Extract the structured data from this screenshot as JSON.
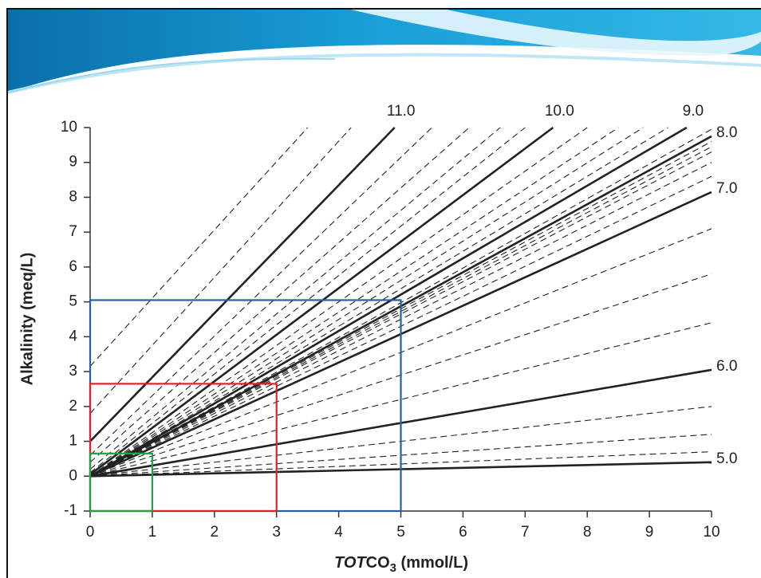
{
  "chart_data": {
    "type": "line",
    "xlabel_parts": [
      "TOT",
      "CO",
      "3",
      " (mmol/L)"
    ],
    "ylabel": "Alkalinity (meq/L)",
    "xlim": [
      0,
      10
    ],
    "xticks": [
      0,
      1,
      2,
      3,
      4,
      5,
      6,
      7,
      8,
      9,
      10
    ],
    "ylim": [
      -1,
      10
    ],
    "yticks": [
      -1,
      0,
      1,
      2,
      3,
      4,
      5,
      6,
      7,
      8,
      9,
      10
    ],
    "line_color": "#222222",
    "series": [
      {
        "name": "11.0",
        "style": "solid",
        "x": [
          0,
          4.9
        ],
        "values": [
          1.0,
          10
        ]
      },
      {
        "name": "10.0",
        "style": "solid",
        "x": [
          0,
          7.45
        ],
        "values": [
          0.05,
          10
        ]
      },
      {
        "name": "9.0",
        "style": "solid",
        "x": [
          0,
          9.6
        ],
        "values": [
          0,
          10
        ]
      },
      {
        "name": "8.0",
        "style": "solid",
        "x": [
          0,
          10
        ],
        "values": [
          0,
          9.75
        ]
      },
      {
        "name": "7.0",
        "style": "solid",
        "x": [
          0,
          10
        ],
        "values": [
          0,
          8.15
        ]
      },
      {
        "name": "6.0",
        "style": "solid",
        "x": [
          0,
          10
        ],
        "values": [
          0,
          3.05
        ]
      },
      {
        "name": "5.0",
        "style": "solid",
        "x": [
          0,
          10
        ],
        "values": [
          0,
          0.4
        ]
      },
      {
        "style": "dashed",
        "x": [
          0,
          3.5
        ],
        "values": [
          3.15,
          10
        ]
      },
      {
        "style": "dashed",
        "x": [
          0,
          4.2
        ],
        "values": [
          1.8,
          10
        ]
      },
      {
        "style": "dashed",
        "x": [
          0,
          5.5
        ],
        "values": [
          0.6,
          10
        ]
      },
      {
        "style": "dashed",
        "x": [
          0,
          6.1
        ],
        "values": [
          0.4,
          10
        ]
      },
      {
        "style": "dashed",
        "x": [
          0,
          6.6
        ],
        "values": [
          0.2,
          10
        ]
      },
      {
        "style": "dashed",
        "x": [
          0,
          7.0
        ],
        "values": [
          0.1,
          10
        ]
      },
      {
        "style": "dashed",
        "x": [
          0,
          8.0
        ],
        "values": [
          0,
          10
        ]
      },
      {
        "style": "dashed",
        "x": [
          0,
          8.5
        ],
        "values": [
          0,
          10
        ]
      },
      {
        "style": "dashed",
        "x": [
          0,
          8.9
        ],
        "values": [
          0,
          10
        ]
      },
      {
        "style": "dashed",
        "x": [
          0,
          9.3
        ],
        "values": [
          0,
          10
        ]
      },
      {
        "style": "dashed",
        "x": [
          0,
          10
        ],
        "values": [
          0,
          9.95
        ]
      },
      {
        "style": "dashed",
        "x": [
          0,
          10
        ],
        "values": [
          0,
          9.6
        ]
      },
      {
        "style": "dashed",
        "x": [
          0,
          10
        ],
        "values": [
          0,
          9.45
        ]
      },
      {
        "style": "dashed",
        "x": [
          0,
          10
        ],
        "values": [
          0,
          9.3
        ]
      },
      {
        "style": "dashed",
        "x": [
          0,
          10
        ],
        "values": [
          0,
          9.0
        ]
      },
      {
        "style": "dashed",
        "x": [
          0,
          10
        ],
        "values": [
          0,
          8.6
        ]
      },
      {
        "style": "dashed",
        "x": [
          0,
          10
        ],
        "values": [
          0,
          7.1
        ]
      },
      {
        "style": "dashed",
        "x": [
          0,
          10
        ],
        "values": [
          0,
          5.8
        ]
      },
      {
        "style": "dashed",
        "x": [
          0,
          10
        ],
        "values": [
          0,
          4.4
        ]
      },
      {
        "style": "dashed",
        "x": [
          0,
          10
        ],
        "values": [
          0,
          2.0
        ]
      },
      {
        "style": "dashed",
        "x": [
          0,
          10
        ],
        "values": [
          0,
          1.2
        ]
      },
      {
        "style": "dashed",
        "x": [
          0,
          10
        ],
        "values": [
          0,
          0.7
        ]
      }
    ],
    "rectangles": [
      {
        "x": [
          0,
          5
        ],
        "y": [
          -1,
          5.05
        ],
        "color": "#2a5ca8"
      },
      {
        "x": [
          0,
          3
        ],
        "y": [
          -1,
          2.65
        ],
        "color": "#e0202a"
      },
      {
        "x": [
          0,
          1
        ],
        "y": [
          -1,
          0.65
        ],
        "color": "#22a04a"
      }
    ]
  }
}
